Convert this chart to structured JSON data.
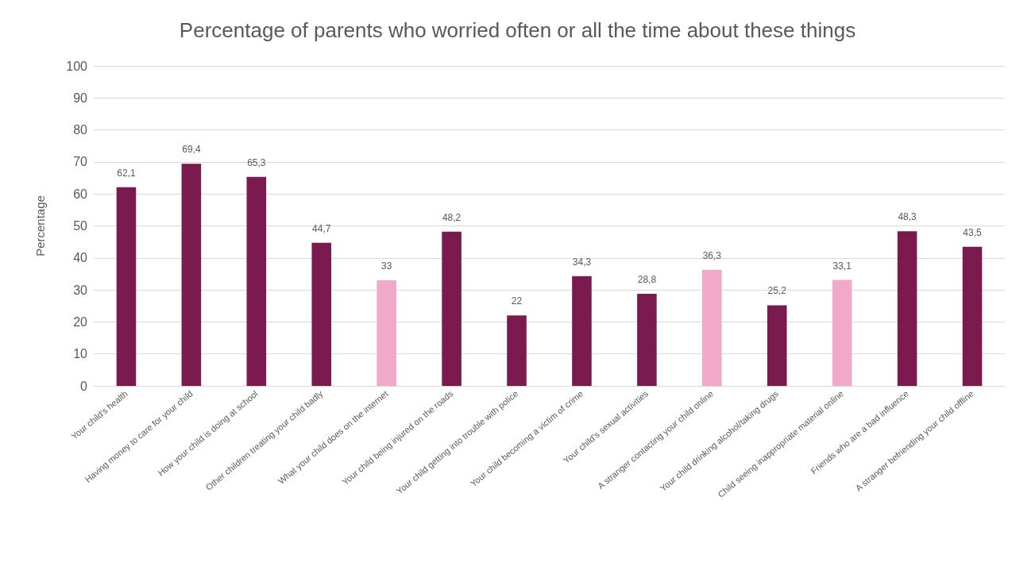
{
  "chart_data": {
    "type": "bar",
    "title": "Percentage of parents who worried often or all the time about these things",
    "ylabel": "Percentage",
    "categories": [
      "Your child's health",
      "Having money to care for your child",
      "How your child is doing at school",
      "Other children treating your child badly",
      "What your child does on the internet",
      "Your child being injured on the roads",
      "Your child getting into trouble with police",
      "Your child becoming a victim of crime",
      "Your child's sexual activities",
      "A stranger contacting your child online",
      "Your child drinking alcohol/taking drugs",
      "Child seeing inappropriate material online",
      "Friends who are a bad influence",
      "A stranger befriending your child offline"
    ],
    "values": [
      62.1,
      69.4,
      65.3,
      44.7,
      33,
      48.2,
      22,
      34.3,
      28.8,
      36.3,
      25.2,
      33.1,
      48.3,
      43.5
    ],
    "value_labels": [
      "62,1",
      "69,4",
      "65,3",
      "44,7",
      "33",
      "48,2",
      "22",
      "34,3",
      "28,8",
      "36,3",
      "25,2",
      "33,1",
      "48,3",
      "43,5"
    ],
    "colors": [
      "#7b1a4f",
      "#7b1a4f",
      "#7b1a4f",
      "#7b1a4f",
      "#f1a9c9",
      "#7b1a4f",
      "#7b1a4f",
      "#7b1a4f",
      "#7b1a4f",
      "#f1a9c9",
      "#7b1a4f",
      "#f1a9c9",
      "#7b1a4f",
      "#7b1a4f"
    ],
    "ylim": [
      0,
      100
    ],
    "yticks": [
      0,
      10,
      20,
      30,
      40,
      50,
      60,
      70,
      80,
      90,
      100
    ],
    "grid": "y"
  }
}
